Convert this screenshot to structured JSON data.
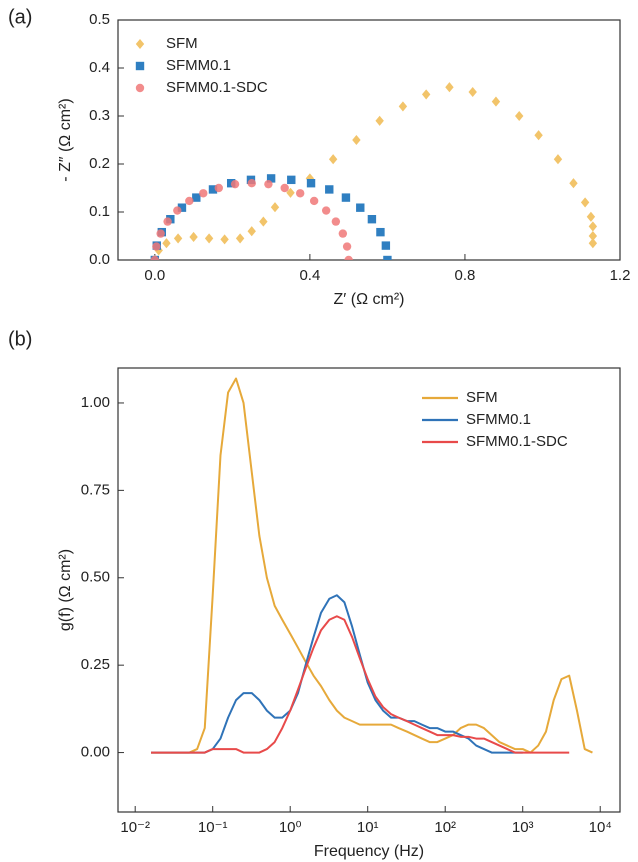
{
  "chart_data": [
    {
      "type": "scatter",
      "panel_label": "(a)",
      "x_label": "Z′ (Ω cm²)",
      "y_label": "- Z″ (Ω cm²)",
      "xlim": [
        -0.095,
        1.2
      ],
      "ylim": [
        0,
        0.5
      ],
      "xticks": [
        {
          "value": 0,
          "label": "0.0"
        },
        0.4,
        0.8,
        1.2
      ],
      "yticks": [
        {
          "value": 0,
          "label": "0.0"
        },
        0.1,
        0.2,
        0.3,
        0.4,
        0.5
      ],
      "legend": "upper left",
      "series": [
        {
          "name": "SFM",
          "color": "#f2c46a",
          "marker": "diamond",
          "x": [
            0,
            0.01,
            0.03,
            0.06,
            0.1,
            0.14,
            0.18,
            0.22,
            0.25,
            0.28,
            0.31,
            0.35,
            0.4,
            0.46,
            0.52,
            0.58,
            0.64,
            0.7,
            0.76,
            0.82,
            0.88,
            0.94,
            0.99,
            1.04,
            1.08,
            1.11,
            1.125,
            1.13,
            1.13,
            1.13
          ],
          "values": [
            0,
            0.02,
            0.035,
            0.045,
            0.048,
            0.045,
            0.043,
            0.045,
            0.06,
            0.08,
            0.11,
            0.14,
            0.17,
            0.21,
            0.25,
            0.29,
            0.32,
            0.345,
            0.36,
            0.35,
            0.33,
            0.3,
            0.26,
            0.21,
            0.16,
            0.12,
            0.09,
            0.07,
            0.05,
            0.035
          ]
        },
        {
          "name": "SFMM0.1",
          "color": "#2f7fc1",
          "marker": "square",
          "x": [
            0,
            0.005,
            0.018,
            0.04,
            0.07,
            0.107,
            0.15,
            0.197,
            0.248,
            0.3,
            0.352,
            0.403,
            0.45,
            0.493,
            0.53,
            0.56,
            0.582,
            0.596,
            0.6
          ],
          "values": [
            0,
            0.03,
            0.058,
            0.085,
            0.109,
            0.13,
            0.147,
            0.16,
            0.167,
            0.17,
            0.167,
            0.16,
            0.147,
            0.13,
            0.109,
            0.085,
            0.058,
            0.03,
            0
          ]
        },
        {
          "name": "SFMM0.1-SDC",
          "color": "#f07878",
          "marker": "circle",
          "x": [
            0,
            0.004,
            0.015,
            0.033,
            0.058,
            0.089,
            0.125,
            0.165,
            0.207,
            0.25,
            0.293,
            0.335,
            0.375,
            0.411,
            0.442,
            0.467,
            0.485,
            0.496,
            0.5
          ],
          "values": [
            0,
            0.028,
            0.055,
            0.08,
            0.103,
            0.123,
            0.139,
            0.15,
            0.158,
            0.16,
            0.158,
            0.15,
            0.139,
            0.123,
            0.103,
            0.08,
            0.055,
            0.028,
            0
          ]
        }
      ]
    },
    {
      "type": "line",
      "panel_label": "(b)",
      "x_label": "Frequency (Hz)",
      "y_label": "g(f) (Ω cm²)",
      "xscale": "log",
      "xlim": [
        0.006,
        18000
      ],
      "ylim": [
        -0.17,
        1.1
      ],
      "xticks": [
        {
          "value": 0.01,
          "label": "10⁻²"
        },
        {
          "value": 0.1,
          "label": "10⁻¹"
        },
        {
          "value": 1,
          "label": "10⁰"
        },
        {
          "value": 10,
          "label": "10¹"
        },
        {
          "value": 100,
          "label": "10²"
        },
        {
          "value": 1000,
          "label": "10³"
        },
        {
          "value": 10000,
          "label": "10⁴"
        }
      ],
      "yticks": [
        {
          "value": 0,
          "label": "0.00"
        },
        0.25,
        {
          "value": 0.5,
          "label": "0.50"
        },
        0.75,
        {
          "value": 1,
          "label": "1.00"
        }
      ],
      "legend": "upper right",
      "x": [
        0.016,
        0.02,
        0.025,
        0.032,
        0.04,
        0.05,
        0.063,
        0.079,
        0.1,
        0.126,
        0.158,
        0.2,
        0.25,
        0.32,
        0.4,
        0.5,
        0.63,
        0.79,
        1,
        1.26,
        1.58,
        2,
        2.5,
        3.2,
        4,
        5,
        6.3,
        7.9,
        10,
        12.6,
        15.8,
        20,
        25,
        32,
        40,
        50,
        63,
        79,
        100,
        126,
        158,
        200,
        251,
        316,
        398,
        501,
        631,
        794,
        1000,
        1259,
        1585,
        1995,
        2512,
        3162,
        3981,
        5012,
        6310,
        7943
      ],
      "series": [
        {
          "name": "SFM",
          "color": "#e6a93a",
          "values": [
            0,
            0,
            0,
            0,
            0,
            0,
            0.01,
            0.07,
            0.45,
            0.85,
            1.03,
            1.07,
            1.0,
            0.8,
            0.62,
            0.5,
            0.42,
            0.38,
            0.34,
            0.3,
            0.26,
            0.22,
            0.19,
            0.15,
            0.12,
            0.1,
            0.09,
            0.08,
            0.08,
            0.08,
            0.08,
            0.08,
            0.07,
            0.06,
            0.05,
            0.04,
            0.03,
            0.03,
            0.04,
            0.05,
            0.07,
            0.08,
            0.08,
            0.07,
            0.05,
            0.03,
            0.02,
            0.01,
            0.01,
            0,
            0.02,
            0.06,
            0.15,
            0.21,
            0.22,
            0.12,
            0.01,
            0
          ]
        },
        {
          "name": "SFMM0.1",
          "color": "#2f73b8",
          "values": [
            0,
            0,
            0,
            0,
            0,
            0,
            0,
            0,
            0.01,
            0.04,
            0.1,
            0.15,
            0.17,
            0.17,
            0.15,
            0.12,
            0.1,
            0.1,
            0.12,
            0.17,
            0.25,
            0.33,
            0.4,
            0.44,
            0.45,
            0.43,
            0.36,
            0.28,
            0.2,
            0.15,
            0.12,
            0.1,
            0.1,
            0.09,
            0.09,
            0.08,
            0.07,
            0.07,
            0.06,
            0.06,
            0.05,
            0.04,
            0.02,
            0.01,
            0,
            0,
            0,
            0,
            0,
            null,
            null,
            null,
            null,
            null,
            null,
            null,
            null,
            null
          ]
        },
        {
          "name": "SFMM0.1-SDC",
          "color": "#e84a4a",
          "values": [
            0,
            0,
            0,
            0,
            0,
            0,
            0,
            0,
            0.01,
            0.01,
            0.01,
            0.01,
            0,
            0,
            0,
            0.01,
            0.03,
            0.07,
            0.12,
            0.18,
            0.24,
            0.3,
            0.35,
            0.38,
            0.39,
            0.38,
            0.33,
            0.27,
            0.21,
            0.16,
            0.13,
            0.11,
            0.1,
            0.09,
            0.08,
            0.07,
            0.06,
            0.05,
            0.05,
            0.05,
            0.045,
            0.045,
            0.04,
            0.04,
            0.03,
            0.02,
            0.01,
            0,
            0,
            0,
            0,
            0,
            0,
            0,
            0,
            null,
            null,
            null
          ]
        }
      ]
    }
  ]
}
